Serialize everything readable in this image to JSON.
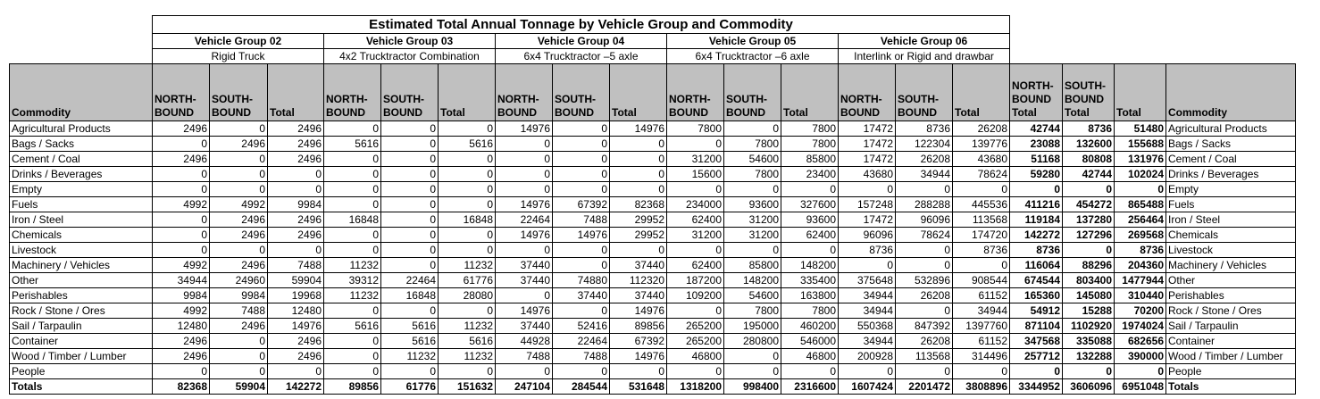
{
  "title": "Estimated Total Annual Tonnage by Vehicle Group and Commodity",
  "vehicle_groups": [
    {
      "name": "Vehicle Group 02",
      "description": "Rigid Truck"
    },
    {
      "name": "Vehicle Group 03",
      "description": "4x2 Trucktractor Combination"
    },
    {
      "name": "Vehicle Group 04",
      "description": "6x4 Trucktractor –5 axle"
    },
    {
      "name": "Vehicle Group 05",
      "description": "6x4 Trucktractor –6 axle"
    },
    {
      "name": "Vehicle Group 06",
      "description": "Interlink or Rigid and drawbar"
    }
  ],
  "column_headers": {
    "commodity": "Commodity",
    "northbound": "NORTH-BOUND",
    "southbound": "SOUTH-BOUND",
    "total": "Total",
    "northbound_total": "NORTH-BOUND Total",
    "southbound_total": "SOUTH-BOUND Total",
    "grand_total": "Total",
    "commodity_right": "Commodity"
  },
  "rows": [
    {
      "commodity": "Agricultural Products",
      "values": [
        "2496",
        "0",
        "2496",
        "0",
        "0",
        "0",
        "14976",
        "0",
        "14976",
        "7800",
        "0",
        "7800",
        "17472",
        "8736",
        "26208",
        "42744",
        "8736",
        "51480"
      ]
    },
    {
      "commodity": "Bags / Sacks",
      "values": [
        "0",
        "2496",
        "2496",
        "5616",
        "0",
        "5616",
        "0",
        "0",
        "0",
        "0",
        "7800",
        "7800",
        "17472",
        "122304",
        "139776",
        "23088",
        "132600",
        "155688"
      ]
    },
    {
      "commodity": "Cement / Coal",
      "values": [
        "2496",
        "0",
        "2496",
        "0",
        "0",
        "0",
        "0",
        "0",
        "0",
        "31200",
        "54600",
        "85800",
        "17472",
        "26208",
        "43680",
        "51168",
        "80808",
        "131976"
      ]
    },
    {
      "commodity": "Drinks / Beverages",
      "values": [
        "0",
        "0",
        "0",
        "0",
        "0",
        "0",
        "0",
        "0",
        "0",
        "15600",
        "7800",
        "23400",
        "43680",
        "34944",
        "78624",
        "59280",
        "42744",
        "102024"
      ]
    },
    {
      "commodity": "Empty",
      "values": [
        "0",
        "0",
        "0",
        "0",
        "0",
        "0",
        "0",
        "0",
        "0",
        "0",
        "0",
        "0",
        "0",
        "0",
        "0",
        "0",
        "0",
        "0"
      ]
    },
    {
      "commodity": "Fuels",
      "values": [
        "4992",
        "4992",
        "9984",
        "0",
        "0",
        "0",
        "14976",
        "67392",
        "82368",
        "234000",
        "93600",
        "327600",
        "157248",
        "288288",
        "445536",
        "411216",
        "454272",
        "865488"
      ]
    },
    {
      "commodity": "Iron / Steel",
      "values": [
        "0",
        "2496",
        "2496",
        "16848",
        "0",
        "16848",
        "22464",
        "7488",
        "29952",
        "62400",
        "31200",
        "93600",
        "17472",
        "96096",
        "113568",
        "119184",
        "137280",
        "256464"
      ]
    },
    {
      "commodity": "Chemicals",
      "values": [
        "0",
        "2496",
        "2496",
        "0",
        "0",
        "0",
        "14976",
        "14976",
        "29952",
        "31200",
        "31200",
        "62400",
        "96096",
        "78624",
        "174720",
        "142272",
        "127296",
        "269568"
      ]
    },
    {
      "commodity": "Livestock",
      "values": [
        "0",
        "0",
        "0",
        "0",
        "0",
        "0",
        "0",
        "0",
        "0",
        "0",
        "0",
        "0",
        "8736",
        "0",
        "8736",
        "8736",
        "0",
        "8736"
      ]
    },
    {
      "commodity": "Machinery / Vehicles",
      "values": [
        "4992",
        "2496",
        "7488",
        "11232",
        "0",
        "11232",
        "37440",
        "0",
        "37440",
        "62400",
        "85800",
        "148200",
        "0",
        "0",
        "0",
        "116064",
        "88296",
        "204360"
      ]
    },
    {
      "commodity": "Other",
      "values": [
        "34944",
        "24960",
        "59904",
        "39312",
        "22464",
        "61776",
        "37440",
        "74880",
        "112320",
        "187200",
        "148200",
        "335400",
        "375648",
        "532896",
        "908544",
        "674544",
        "803400",
        "1477944"
      ]
    },
    {
      "commodity": "Perishables",
      "values": [
        "9984",
        "9984",
        "19968",
        "11232",
        "16848",
        "28080",
        "0",
        "37440",
        "37440",
        "109200",
        "54600",
        "163800",
        "34944",
        "26208",
        "61152",
        "165360",
        "145080",
        "310440"
      ]
    },
    {
      "commodity": "Rock / Stone / Ores",
      "values": [
        "4992",
        "7488",
        "12480",
        "0",
        "0",
        "0",
        "14976",
        "0",
        "14976",
        "0",
        "7800",
        "7800",
        "34944",
        "0",
        "34944",
        "54912",
        "15288",
        "70200"
      ]
    },
    {
      "commodity": "Sail / Tarpaulin",
      "values": [
        "12480",
        "2496",
        "14976",
        "5616",
        "5616",
        "11232",
        "37440",
        "52416",
        "89856",
        "265200",
        "195000",
        "460200",
        "550368",
        "847392",
        "1397760",
        "871104",
        "1102920",
        "1974024"
      ]
    },
    {
      "commodity": "Container",
      "values": [
        "2496",
        "0",
        "2496",
        "0",
        "5616",
        "5616",
        "44928",
        "22464",
        "67392",
        "265200",
        "280800",
        "546000",
        "34944",
        "26208",
        "61152",
        "347568",
        "335088",
        "682656"
      ]
    },
    {
      "commodity": "Wood / Timber / Lumber",
      "values": [
        "2496",
        "0",
        "2496",
        "0",
        "11232",
        "11232",
        "7488",
        "7488",
        "14976",
        "46800",
        "0",
        "46800",
        "200928",
        "113568",
        "314496",
        "257712",
        "132288",
        "390000"
      ]
    },
    {
      "commodity": "People",
      "values": [
        "0",
        "0",
        "0",
        "0",
        "0",
        "0",
        "0",
        "0",
        "0",
        "0",
        "0",
        "0",
        "0",
        "0",
        "0",
        "0",
        "0",
        "0"
      ]
    }
  ],
  "totals_row": {
    "label": "Totals",
    "values": [
      "82368",
      "59904",
      "142272",
      "89856",
      "61776",
      "151632",
      "247104",
      "284544",
      "531648",
      "1318200",
      "998400",
      "2316600",
      "1607424",
      "2201472",
      "3808896",
      "3344952",
      "3606096",
      "6951048"
    ]
  }
}
